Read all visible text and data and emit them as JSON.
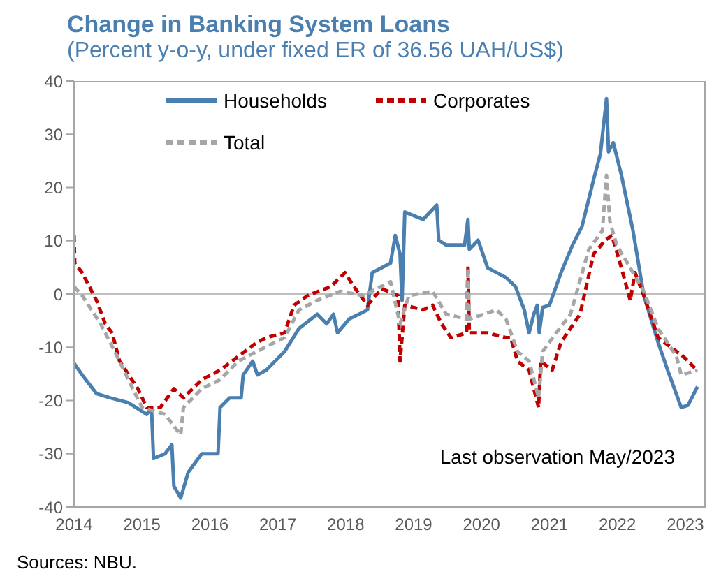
{
  "chart_data": {
    "type": "line",
    "title": "Change in Banking System Loans",
    "subtitle": "(Percent y-o-y, under fixed ER of 36.56 UAH/US$)",
    "annotations": [
      "Last observation May/2023",
      "Sources: NBU."
    ],
    "xlim": [
      2014,
      2023.3
    ],
    "xticks": [
      2014,
      2015,
      2016,
      2017,
      2018,
      2019,
      2020,
      2021,
      2022,
      2023
    ],
    "ylim": [
      -40,
      40
    ],
    "yticks": [
      -40,
      -30,
      -20,
      -10,
      0,
      10,
      20,
      30,
      40
    ],
    "legend": "top",
    "marker": "none",
    "ref_lines": [
      {
        "axis": "y",
        "value": 0,
        "color": "#bfbfbf"
      }
    ],
    "series": [
      {
        "name": "Households",
        "color": "#4a7fb0",
        "line_style": "solid",
        "x": [
          2014.0,
          2014.12,
          2014.33,
          2014.53,
          2014.8,
          2015.07,
          2015.14,
          2015.17,
          2015.34,
          2015.44,
          2015.47,
          2015.57,
          2015.68,
          2015.88,
          2016.12,
          2016.15,
          2016.29,
          2016.46,
          2016.49,
          2016.63,
          2016.7,
          2016.83,
          2017.1,
          2017.31,
          2017.58,
          2017.72,
          2017.82,
          2017.88,
          2018.05,
          2018.32,
          2018.39,
          2018.66,
          2018.73,
          2018.8,
          2018.83,
          2018.87,
          2019.14,
          2019.34,
          2019.37,
          2019.48,
          2019.75,
          2019.8,
          2019.82,
          2019.95,
          2020.09,
          2020.36,
          2020.5,
          2020.63,
          2020.7,
          2020.77,
          2020.82,
          2020.85,
          2020.9,
          2021.0,
          2021.17,
          2021.34,
          2021.48,
          2021.65,
          2021.75,
          2021.84,
          2021.87,
          2021.94,
          2022.06,
          2022.23,
          2022.39,
          2022.6,
          2022.74,
          2022.94,
          2023.04,
          2023.18
        ],
        "values": [
          -13,
          -15.2,
          -18.7,
          -19.5,
          -20.4,
          -22.6,
          -21.3,
          -30.9,
          -30,
          -28.3,
          -36.1,
          -38.3,
          -33.5,
          -30,
          -30,
          -21.3,
          -19.5,
          -19.5,
          -15.2,
          -12.6,
          -15.2,
          -14.3,
          -10.8,
          -6.5,
          -3.8,
          -5.6,
          -3.8,
          -7.3,
          -4.7,
          -3,
          4,
          5.8,
          11,
          7.5,
          -1.2,
          15.4,
          14,
          16.7,
          10.1,
          9.2,
          9.2,
          14,
          8.4,
          10.1,
          4.9,
          3.1,
          1.4,
          -3,
          -7.3,
          -3.8,
          -2.1,
          -7.3,
          -2.5,
          -2.1,
          4,
          9.2,
          12.7,
          21.5,
          26.3,
          36.7,
          26.7,
          28.4,
          22.3,
          11.9,
          -0.3,
          -9.1,
          -14.3,
          -21.3,
          -20.9,
          -17.4
        ]
      },
      {
        "name": "Corporates",
        "color": "#c00000",
        "line_style": "dashed",
        "x": [
          2014.0,
          2014.01,
          2014.12,
          2014.33,
          2014.46,
          2014.56,
          2014.67,
          2014.94,
          2015.07,
          2015.27,
          2015.47,
          2015.61,
          2015.88,
          2016.15,
          2016.42,
          2016.69,
          2016.83,
          2017.1,
          2017.24,
          2017.44,
          2017.78,
          2017.99,
          2018.12,
          2018.32,
          2018.53,
          2018.77,
          2018.8,
          2018.87,
          2019.14,
          2019.28,
          2019.41,
          2019.55,
          2019.78,
          2019.8,
          2019.82,
          2020.09,
          2020.36,
          2020.43,
          2020.53,
          2020.7,
          2020.84,
          2020.87,
          2021.04,
          2021.17,
          2021.45,
          2021.65,
          2021.82,
          2021.92,
          2022.06,
          2022.19,
          2022.26,
          2022.39,
          2022.6,
          2022.87,
          2022.97,
          2023.14
        ],
        "values": [
          11,
          5.8,
          4,
          -1.2,
          -5.6,
          -7.3,
          -12.6,
          -17.8,
          -21.3,
          -21.3,
          -17.8,
          -19.5,
          -16.1,
          -14.3,
          -11.7,
          -9.1,
          -8.2,
          -7.3,
          -2.1,
          -0.3,
          1.4,
          4,
          1.4,
          -2.1,
          1,
          -0.3,
          -12.6,
          -2.1,
          -3,
          -2.1,
          -5.6,
          -8.2,
          -7.3,
          5.3,
          -7.3,
          -7.3,
          -8.2,
          -8.2,
          -12.6,
          -14.3,
          -21.3,
          -12.6,
          -14.3,
          -9.1,
          -3.8,
          7.5,
          10.1,
          11,
          4.9,
          -1.2,
          4,
          -0.3,
          -8.2,
          -10.8,
          -11.7,
          -13.9
        ]
      },
      {
        "name": "Total",
        "color": "#a6a6a6",
        "line_style": "dashed",
        "x": [
          2014.0,
          2014.12,
          2014.39,
          2014.6,
          2014.8,
          2015.0,
          2015.34,
          2015.57,
          2015.61,
          2015.88,
          2016.15,
          2016.42,
          2016.69,
          2016.83,
          2017.1,
          2017.31,
          2017.58,
          2017.92,
          2018.26,
          2018.66,
          2018.8,
          2018.93,
          2019.28,
          2019.48,
          2019.78,
          2019.8,
          2019.82,
          2020.22,
          2020.36,
          2020.53,
          2020.7,
          2020.84,
          2020.9,
          2021.1,
          2021.31,
          2021.58,
          2021.78,
          2021.84,
          2021.89,
          2021.99,
          2022.19,
          2022.39,
          2022.6,
          2022.87,
          2022.94,
          2023.18
        ],
        "values": [
          1.4,
          -0.3,
          -5.6,
          -10.8,
          -16.1,
          -21.3,
          -22.6,
          -26.5,
          -21.3,
          -17.8,
          -16.1,
          -12.6,
          -10.8,
          -9.9,
          -8.2,
          -3,
          -1.2,
          0.5,
          -0.3,
          2.3,
          -5.6,
          -0.3,
          0.5,
          -3.8,
          -4.7,
          4.9,
          -4.7,
          -3,
          -4.7,
          -10.8,
          -12.6,
          -19.5,
          -10.8,
          -7.3,
          -3.8,
          8.4,
          11.9,
          22.3,
          13.6,
          9.2,
          4.9,
          0.5,
          -6.5,
          -11.7,
          -15.2,
          -14.3
        ]
      }
    ]
  }
}
